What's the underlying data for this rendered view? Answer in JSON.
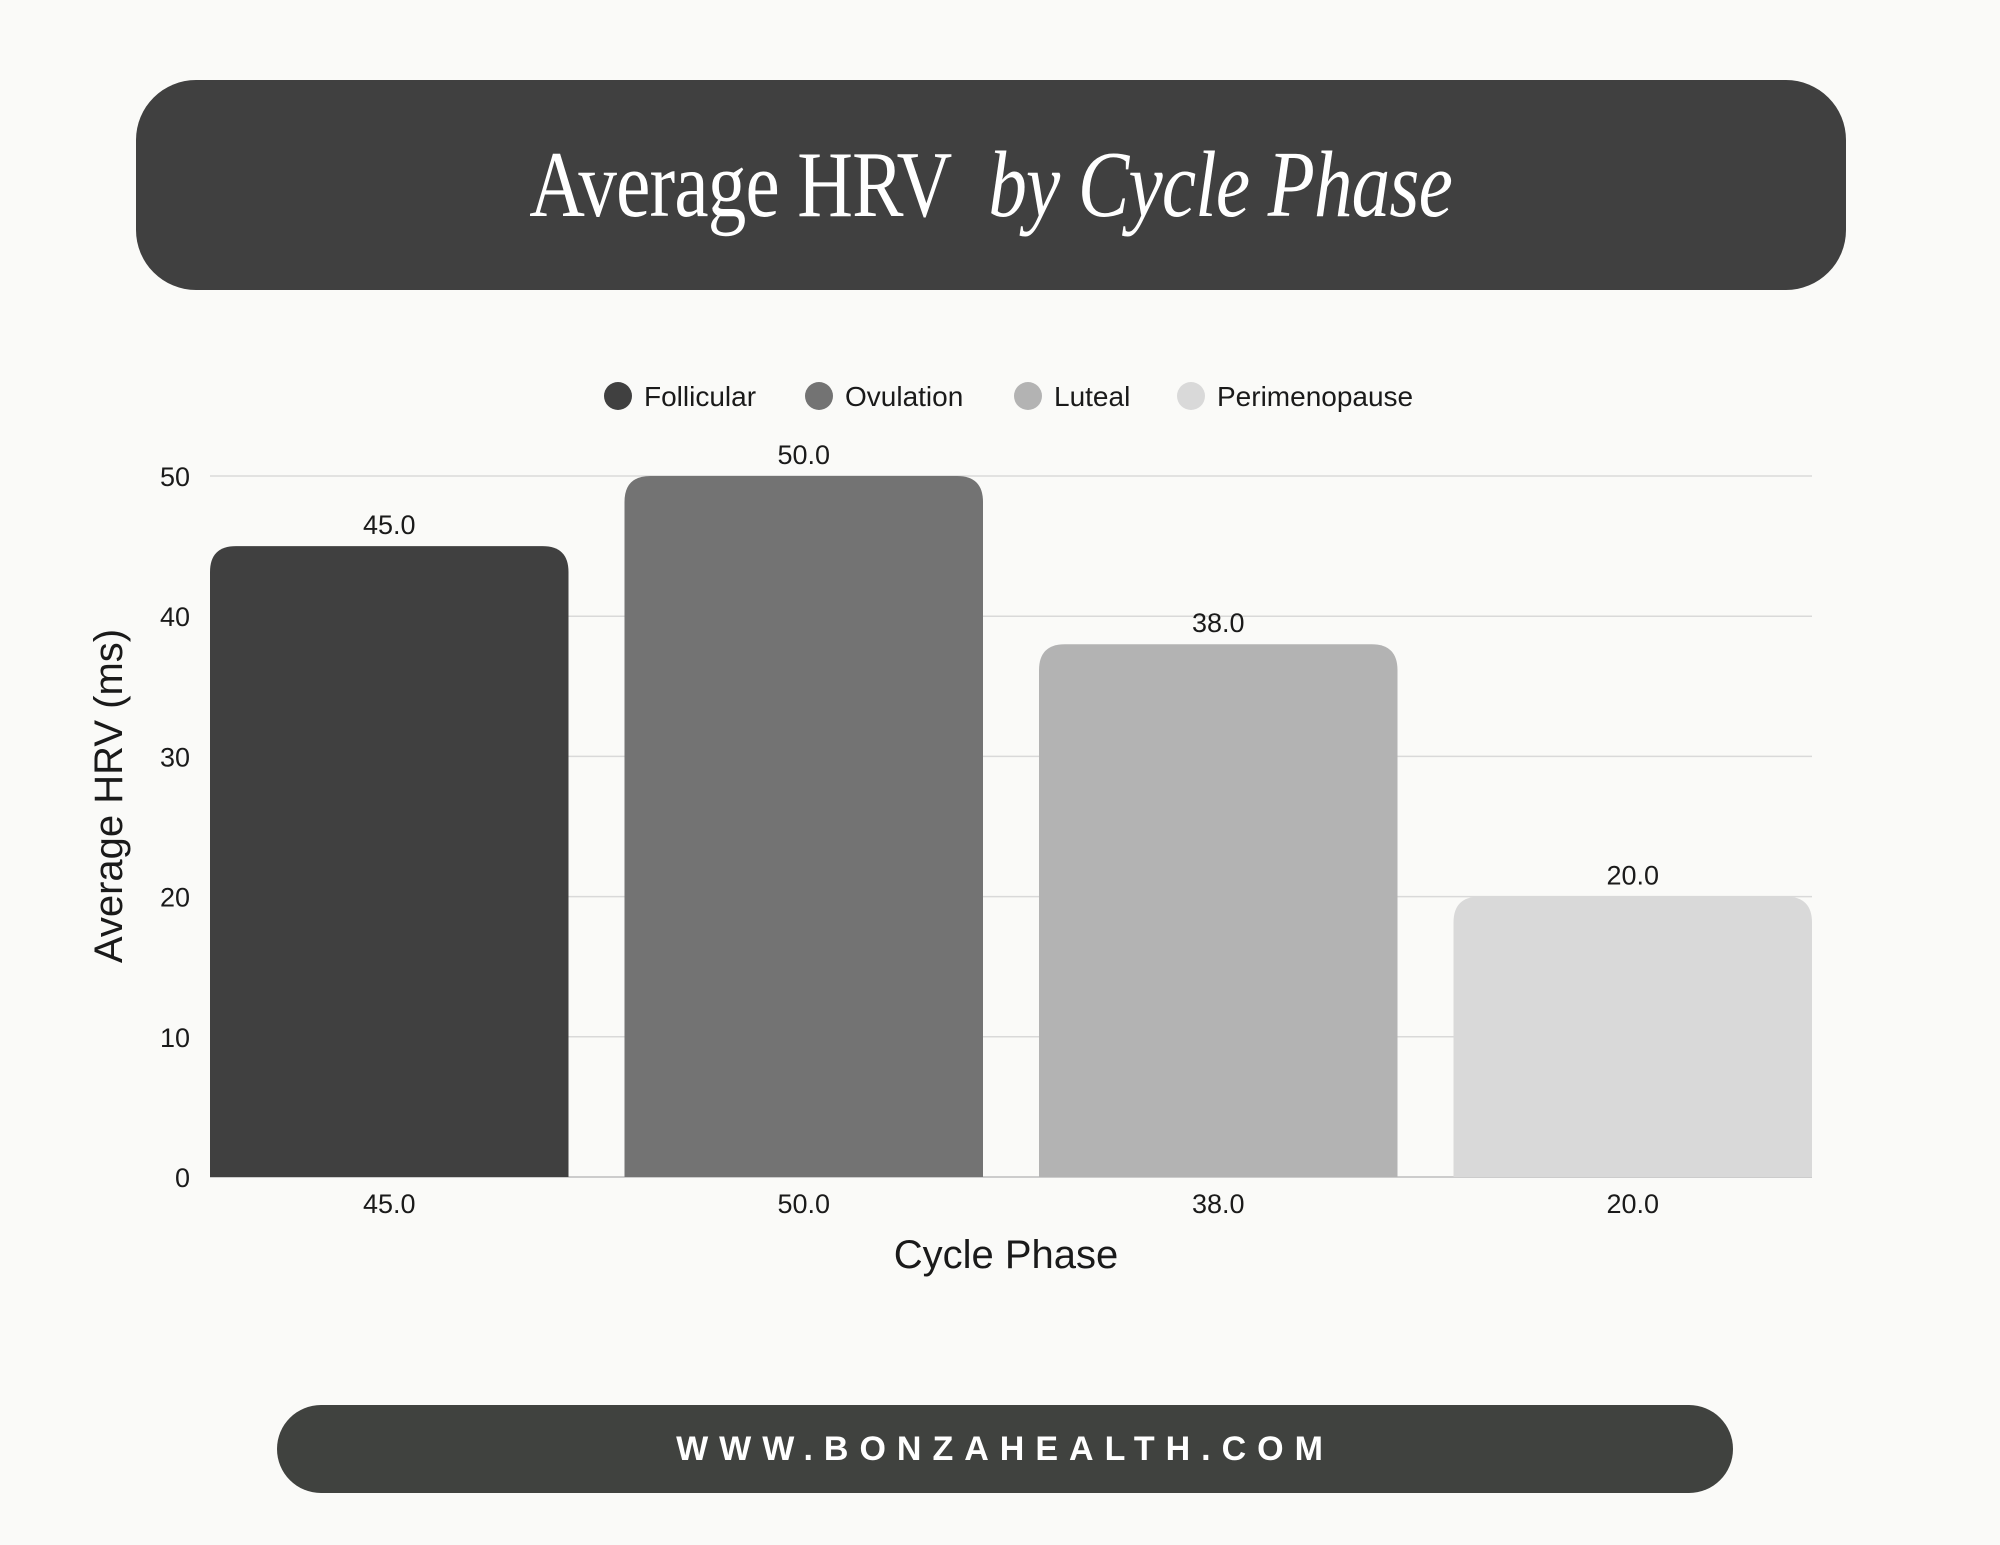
{
  "header": {
    "title_main": "Average HRV",
    "title_italic": "by Cycle Phase"
  },
  "footer": {
    "url": "WWW.BONZAHEALTH.COM"
  },
  "colors": {
    "banner": "#404040",
    "footer": "#40423f",
    "grid": "#d9d9d9",
    "text": "#1a1a1a"
  },
  "chart_data": {
    "type": "bar",
    "categories": [
      "Follicular",
      "Ovulation",
      "Luteal",
      "Perimenopause"
    ],
    "values": [
      45.0,
      50.0,
      38.0,
      20.0
    ],
    "bar_labels": [
      "45.0",
      "50.0",
      "38.0",
      "20.0"
    ],
    "x_tick_labels": [
      "45.0",
      "50.0",
      "38.0",
      "20.0"
    ],
    "colors": [
      "#404040",
      "#737373",
      "#b3b3b3",
      "#d9d9d9"
    ],
    "xlabel": "Cycle Phase",
    "ylabel": "Average HRV (ms)",
    "ylim": [
      0,
      50
    ],
    "yticks": [
      0,
      10,
      20,
      30,
      40,
      50
    ],
    "grid": true,
    "legend_position": "top-center"
  }
}
